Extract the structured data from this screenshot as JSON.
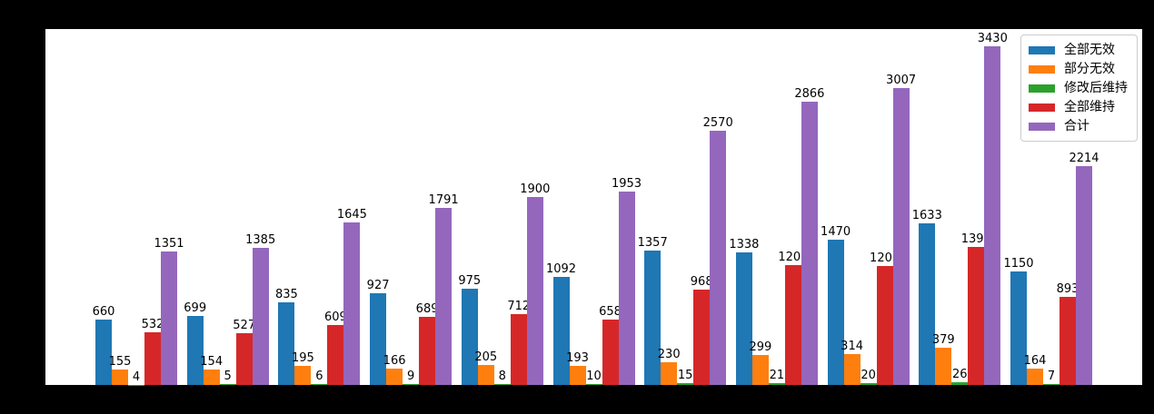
{
  "figure": {
    "background_color": "#000000",
    "plot_background_color": "#ffffff",
    "title": "",
    "xlabel": "",
    "ylabel": ""
  },
  "chart_data": {
    "type": "bar",
    "title": "",
    "xlabel": "",
    "ylabel": "",
    "num_groups": 11,
    "x_tick_labels_visible": false,
    "y_tick_labels_visible": false,
    "grid": false,
    "ylim": [
      0,
      3600
    ],
    "bar_value_labels_shown": true,
    "legend_position": "upper right",
    "series": [
      {
        "key": "all-invalid",
        "name": "全部无效",
        "color": "#1f77b4",
        "values": [
          660,
          699,
          835,
          927,
          975,
          1092,
          1357,
          1338,
          1470,
          1633,
          1150
        ]
      },
      {
        "key": "partial-invalid",
        "name": "部分无效",
        "color": "#ff7f0e",
        "values": [
          155,
          154,
          195,
          166,
          205,
          193,
          230,
          299,
          314,
          379,
          164
        ]
      },
      {
        "key": "maintained-amended",
        "name": "修改后维持",
        "color": "#2ca02c",
        "values": [
          4,
          5,
          6,
          9,
          8,
          10,
          15,
          21,
          20,
          26,
          7
        ]
      },
      {
        "key": "fully-maintained",
        "name": "全部维持",
        "color": "#d62728",
        "values": [
          532,
          527,
          609,
          689,
          712,
          658,
          968,
          1208,
          1203,
          1392,
          893
        ]
      },
      {
        "key": "total",
        "name": "合计",
        "color": "#9467bd",
        "values": [
          1351,
          1385,
          1645,
          1791,
          1900,
          1953,
          2570,
          2866,
          3007,
          3430,
          2214
        ]
      }
    ]
  }
}
